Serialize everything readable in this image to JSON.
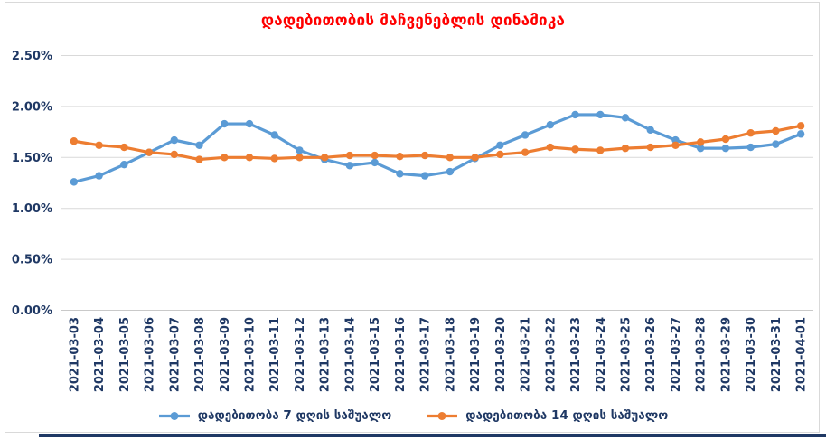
{
  "chart": {
    "title_color": "#FF0000",
    "axis_label_color": "#1F3864",
    "gridline_color": "#D9D9D9",
    "axis_line_color": "#C9C9C9",
    "frame_border_color": "#D9D9D9",
    "bottom_rule_color": "#1F3864",
    "background": "#FFFFFF"
  },
  "chart_data": {
    "type": "line",
    "title": "დადებითობის მაჩვენებლის დინამიკა",
    "x": [
      "2021-03-03",
      "2021-03-04",
      "2021-03-05",
      "2021-03-06",
      "2021-03-07",
      "2021-03-08",
      "2021-03-09",
      "2021-03-10",
      "2021-03-11",
      "2021-03-12",
      "2021-03-13",
      "2021-03-14",
      "2021-03-15",
      "2021-03-16",
      "2021-03-17",
      "2021-03-18",
      "2021-03-19",
      "2021-03-20",
      "2021-03-21",
      "2021-03-22",
      "2021-03-23",
      "2021-03-24",
      "2021-03-25",
      "2021-03-26",
      "2021-03-27",
      "2021-03-28",
      "2021-03-29",
      "2021-03-30",
      "2021-03-31",
      "2021-04-01"
    ],
    "series": [
      {
        "name": "დადებითობა 7 დღის საშუალო",
        "color": "#5B9BD5",
        "values": [
          1.26,
          1.32,
          1.43,
          1.55,
          1.67,
          1.62,
          1.83,
          1.83,
          1.72,
          1.57,
          1.48,
          1.42,
          1.45,
          1.34,
          1.32,
          1.36,
          1.49,
          1.62,
          1.72,
          1.82,
          1.92,
          1.92,
          1.89,
          1.77,
          1.67,
          1.59,
          1.59,
          1.6,
          1.63,
          1.73
        ]
      },
      {
        "name": "დადებითობა 14 დღის საშუალო",
        "color": "#ED7D31",
        "values": [
          1.66,
          1.62,
          1.6,
          1.55,
          1.53,
          1.48,
          1.5,
          1.5,
          1.49,
          1.5,
          1.5,
          1.52,
          1.52,
          1.51,
          1.52,
          1.5,
          1.5,
          1.53,
          1.55,
          1.6,
          1.58,
          1.57,
          1.59,
          1.6,
          1.62,
          1.65,
          1.68,
          1.74,
          1.76,
          1.81
        ]
      }
    ],
    "ylim": [
      0,
      2.5
    ],
    "y_ticks": [
      {
        "value": 0.0,
        "label": "0.00%"
      },
      {
        "value": 0.5,
        "label": "0.50%"
      },
      {
        "value": 1.0,
        "label": "1.00%"
      },
      {
        "value": 1.5,
        "label": "1.50%"
      },
      {
        "value": 2.0,
        "label": "2.00%"
      },
      {
        "value": 2.5,
        "label": "2.50%"
      }
    ],
    "grid": true,
    "legend_position": "bottom",
    "x_label_rotation": -90
  }
}
